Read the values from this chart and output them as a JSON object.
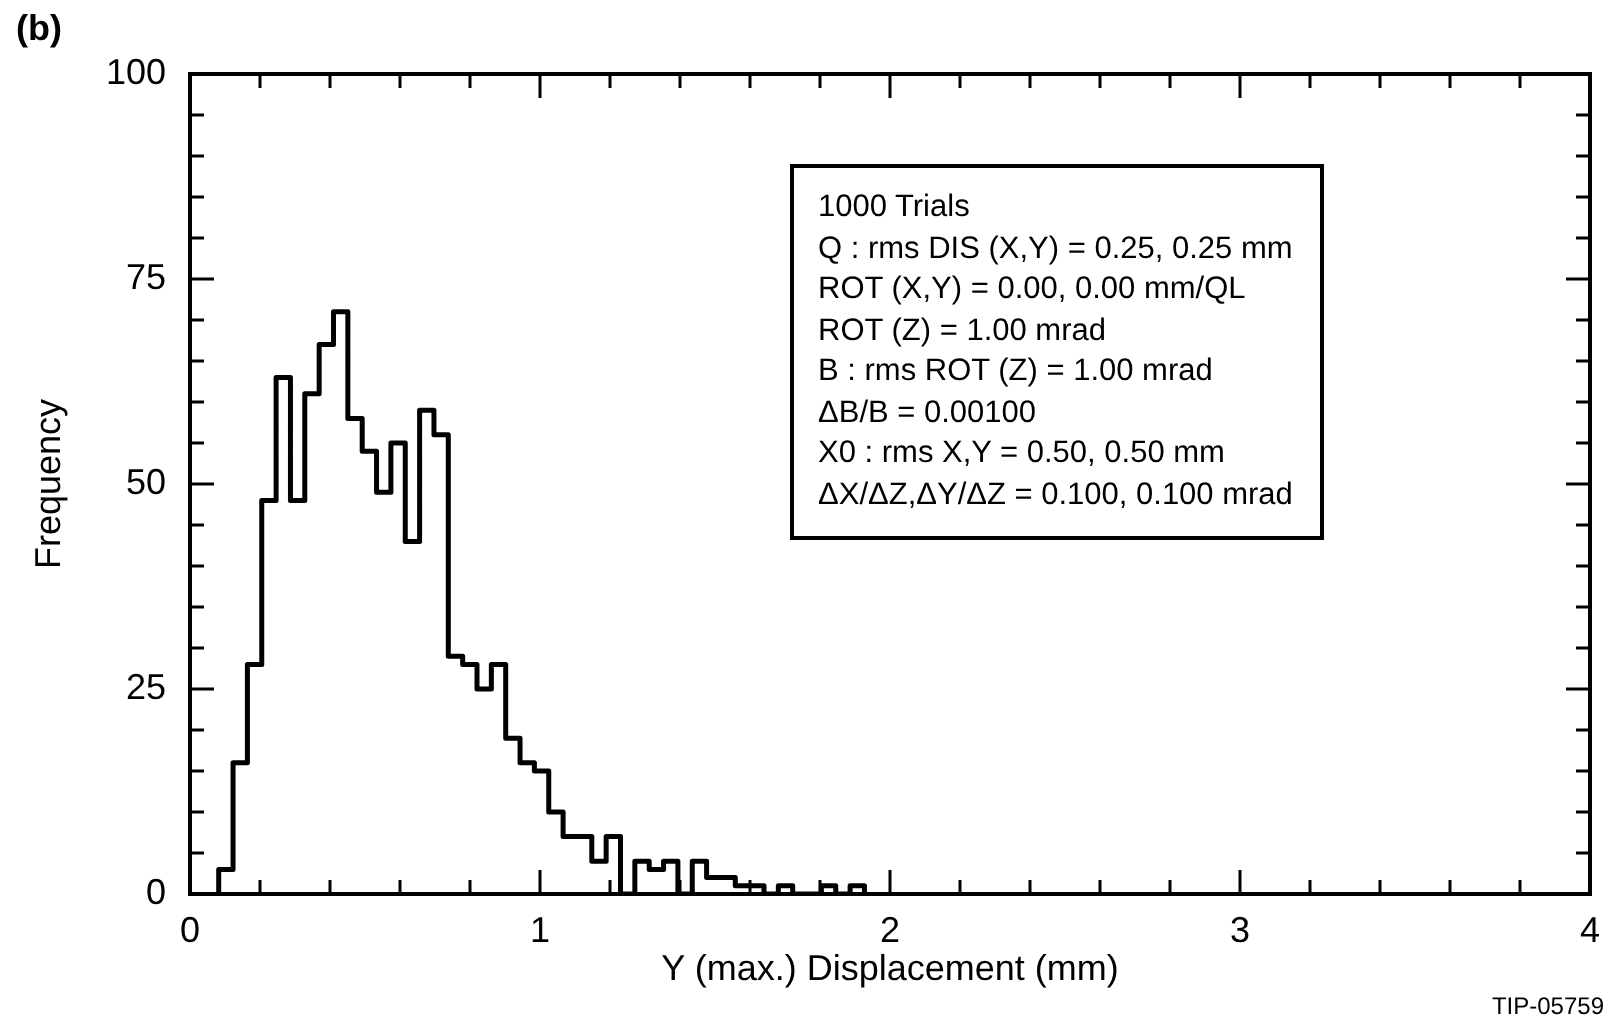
{
  "chart_data": {
    "type": "histogram",
    "xlabel": "Y (max.) Displacement (mm)",
    "ylabel": "Frequency",
    "annotations": [
      "(b)",
      "1000 Trials\nQ : rms DIS (X,Y) = 0.25, 0.25 mm\nROT (X,Y) = 0.00, 0.00 mm/QL\nROT (Z) = 1.00 mrad\nB : rms ROT (Z) = 1.00 mrad\nΔB/B = 0.00100\nX0 : rms X,Y = 0.50, 0.50 mm\nΔX/ΔZ,ΔY/ΔZ = 0.100, 0.100 mrad",
      "TIP-05759"
    ],
    "bins": [
      0.082,
      0.123,
      0.164,
      0.205,
      0.246,
      0.287,
      0.328,
      0.369,
      0.41,
      0.451,
      0.492,
      0.533,
      0.574,
      0.615,
      0.656,
      0.697,
      0.738,
      0.779,
      0.82,
      0.861,
      0.902,
      0.943,
      0.984,
      1.025,
      1.066,
      1.107,
      1.148,
      1.189,
      1.23,
      1.271,
      1.312,
      1.353,
      1.394,
      1.435,
      1.476,
      1.517,
      1.558,
      1.599,
      1.64,
      1.681,
      1.722,
      1.763,
      1.804,
      1.845,
      1.886,
      1.927
    ],
    "values": [
      3,
      16,
      28,
      48,
      63,
      48,
      61,
      67,
      71,
      58,
      54,
      49,
      55,
      43,
      59,
      56,
      29,
      28,
      25,
      28,
      19,
      16,
      15,
      10,
      7,
      7,
      4,
      7,
      0,
      4,
      3,
      4,
      0,
      4,
      2,
      2,
      1,
      1,
      0,
      1,
      0,
      0,
      1,
      0,
      1
    ],
    "color": "#000000",
    "xlim": [
      0,
      4
    ],
    "ylim": [
      0,
      100
    ],
    "xticks": [
      0,
      {
        "value": 0.2,
        "label": null
      },
      {
        "value": 0.4,
        "label": null
      },
      {
        "value": 0.6,
        "label": null
      },
      {
        "value": 0.8,
        "label": null
      },
      1,
      {
        "value": 1.2,
        "label": null
      },
      {
        "value": 1.4,
        "label": null
      },
      {
        "value": 1.6,
        "label": null
      },
      {
        "value": 1.8,
        "label": null
      },
      2,
      {
        "value": 2.2,
        "label": null
      },
      {
        "value": 2.4,
        "label": null
      },
      {
        "value": 2.6,
        "label": null
      },
      {
        "value": 2.8,
        "label": null
      },
      3,
      {
        "value": 3.2,
        "label": null
      },
      {
        "value": 3.4,
        "label": null
      },
      {
        "value": 3.6,
        "label": null
      },
      {
        "value": 3.8,
        "label": null
      },
      4
    ],
    "yticks": [
      0,
      {
        "value": 5,
        "label": null
      },
      {
        "value": 10,
        "label": null
      },
      {
        "value": 15,
        "label": null
      },
      {
        "value": 20,
        "label": null
      },
      25,
      {
        "value": 30,
        "label": null
      },
      {
        "value": 35,
        "label": null
      },
      {
        "value": 40,
        "label": null
      },
      {
        "value": 45,
        "label": null
      },
      50,
      {
        "value": 55,
        "label": null
      },
      {
        "value": 60,
        "label": null
      },
      {
        "value": 65,
        "label": null
      },
      {
        "value": 70,
        "label": null
      },
      75,
      {
        "value": 80,
        "label": null
      },
      {
        "value": 85,
        "label": null
      },
      {
        "value": 90,
        "label": null
      },
      {
        "value": 95,
        "label": null
      },
      100
    ]
  }
}
